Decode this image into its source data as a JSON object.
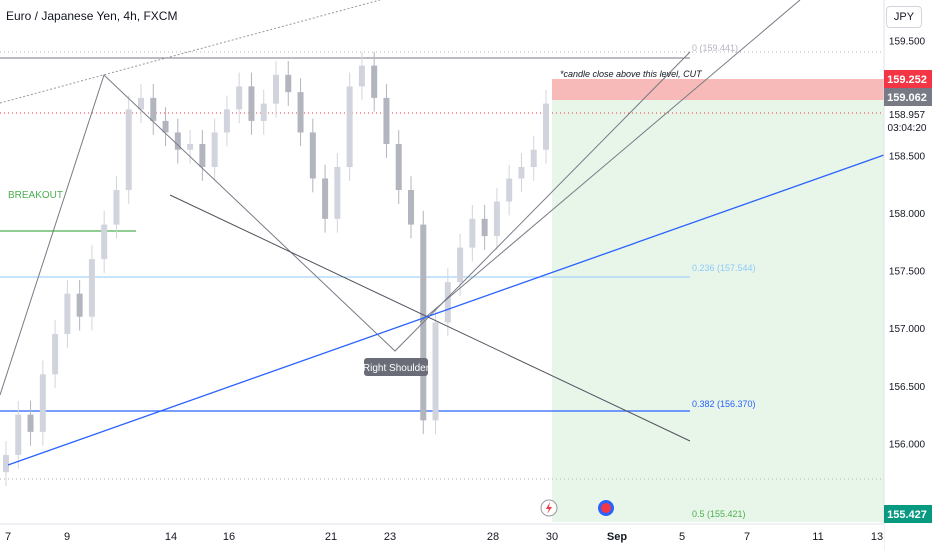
{
  "header": {
    "symbol_title": "Euro / Japanese Yen, 4h, FXCM",
    "currency_button": "JPY"
  },
  "chart_data": {
    "type": "candlestick",
    "title": "Euro / Japanese Yen, 4h, FXCM",
    "x_ticks": [
      "7",
      "9",
      "14",
      "16",
      "21",
      "23",
      "28",
      "30",
      "Sep",
      "5",
      "7",
      "11",
      "13"
    ],
    "y_ticks": [
      "159.500",
      "159.000",
      "158.500",
      "158.000",
      "157.500",
      "157.000",
      "156.500",
      "156.000"
    ],
    "ylim": [
      155.3,
      159.85
    ],
    "price_series": [
      155.9,
      156.25,
      156.1,
      156.6,
      156.95,
      157.3,
      157.1,
      157.6,
      157.9,
      158.2,
      158.9,
      159.0,
      158.8,
      158.7,
      158.55,
      158.6,
      158.4,
      158.7,
      158.9,
      159.1,
      158.8,
      158.95,
      159.2,
      159.05,
      158.7,
      158.3,
      157.95,
      158.4,
      159.1,
      159.28,
      159.0,
      158.6,
      158.2,
      157.9,
      156.2,
      157.05,
      157.4,
      157.7,
      157.95,
      157.8,
      158.1,
      158.3,
      158.4,
      158.55,
      158.95
    ],
    "price_labels": {
      "stop_level": "159.252",
      "prev_level": "159.062",
      "current_price": "158.957",
      "countdown": "03:04:20",
      "target_level": "155.427"
    },
    "fib_levels": [
      {
        "label": "0 (159.441)",
        "value": 159.441
      },
      {
        "label": "0.236 (157.544)",
        "value": 157.544
      },
      {
        "label": "0.382 (156.370)",
        "value": 156.37
      },
      {
        "label": "0.5 (155.421)",
        "value": 155.421
      }
    ],
    "annotations": {
      "breakout": "BREAKOUT",
      "right_shoulder": "Right Shoulder",
      "note": "*candle close above this level, CUT"
    },
    "grid": false
  },
  "colors": {
    "up_candle": "#d1d4dc",
    "down_candle": "#b2b5be",
    "fib_line": "#2962ff",
    "trend_line": "#2962ff",
    "stop_zone": "#f7b6b6",
    "target_zone": "#e8f5e9",
    "breakout": "#4caf50",
    "price_dotted": "#f23645",
    "badge_red": "#f23645",
    "badge_gray": "#787b86",
    "badge_green": "#089981"
  }
}
